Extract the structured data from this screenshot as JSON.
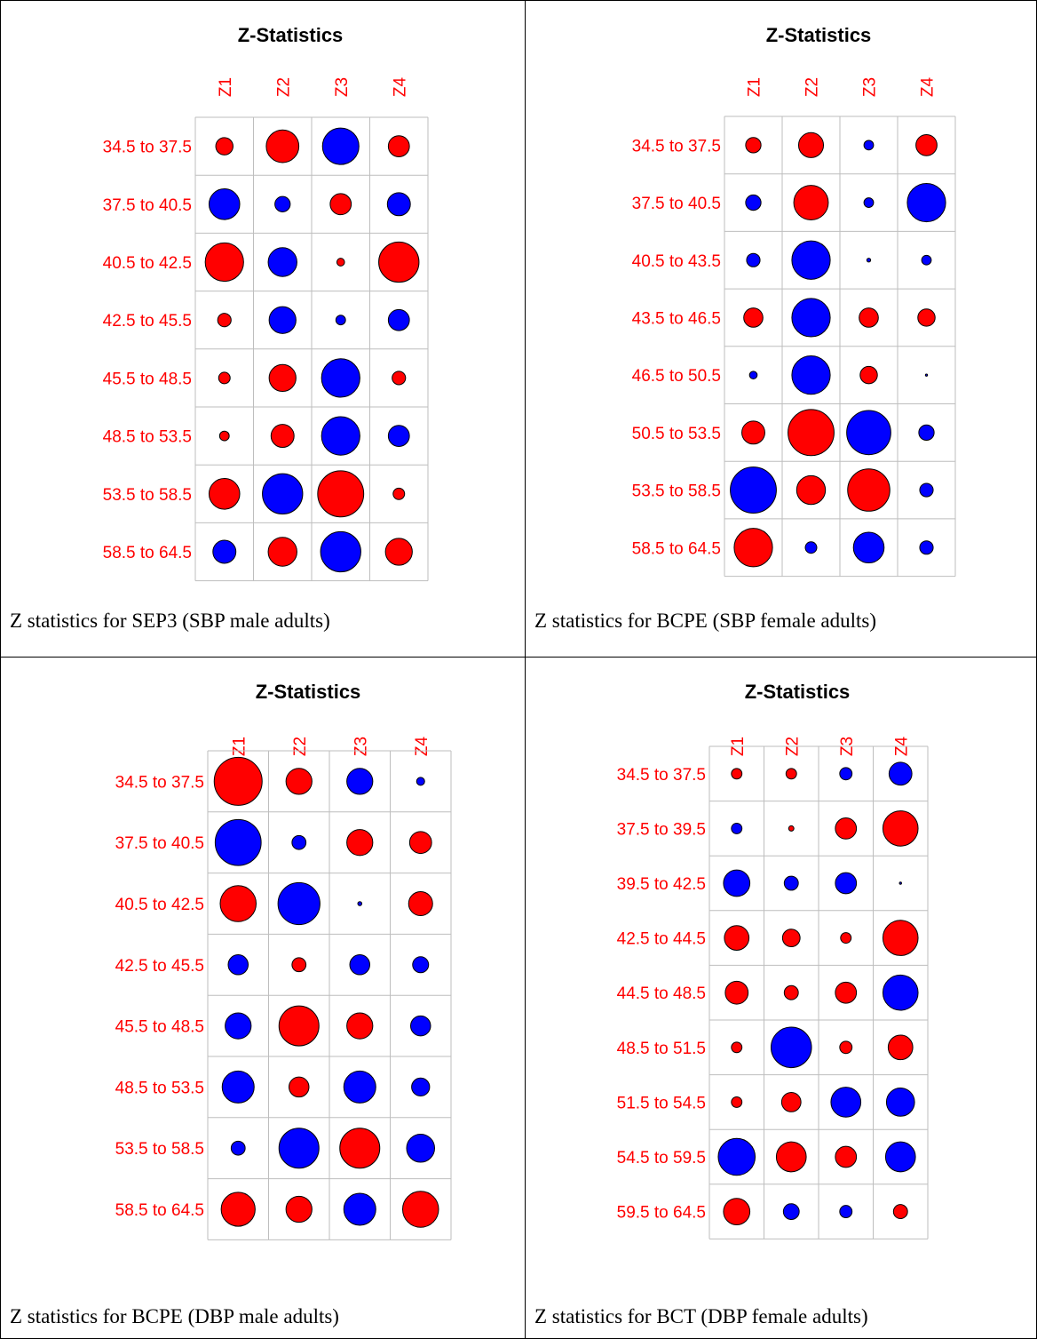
{
  "colors": {
    "positive": "#ff0000",
    "negative": "#0000ff",
    "grid": "#bebebe",
    "label": "#ff0000"
  },
  "chart_data": [
    {
      "type": "heatmap",
      "title": "Z-Statistics",
      "caption": "Z statistics for SEP3 (SBP male adults)",
      "columns": [
        "Z1",
        "Z2",
        "Z3",
        "Z4"
      ],
      "rows": [
        "34.5 to 37.5",
        "37.5 to 40.5",
        "40.5 to 42.5",
        "42.5 to 45.5",
        "45.5 to 48.5",
        "48.5 to 53.5",
        "53.5 to 58.5",
        "58.5 to 64.5"
      ],
      "values": [
        [
          0.45,
          0.85,
          -0.95,
          0.55
        ],
        [
          -0.8,
          -0.4,
          0.55,
          -0.6
        ],
        [
          1.0,
          -0.75,
          0.2,
          1.05
        ],
        [
          0.35,
          -0.7,
          -0.25,
          -0.55
        ],
        [
          0.3,
          0.7,
          -1.0,
          0.35
        ],
        [
          0.25,
          0.6,
          -1.0,
          -0.55
        ],
        [
          0.8,
          -1.05,
          1.2,
          0.3
        ],
        [
          -0.6,
          0.75,
          -1.05,
          0.7
        ]
      ]
    },
    {
      "type": "heatmap",
      "title": "Z-Statistics",
      "caption": "Z statistics for BCPE (SBP female adults)",
      "columns": [
        "Z1",
        "Z2",
        "Z3",
        "Z4"
      ],
      "rows": [
        "34.5 to 37.5",
        "37.5 to 40.5",
        "40.5 to 43.5",
        "43.5 to 46.5",
        "46.5 to 50.5",
        "50.5 to 53.5",
        "53.5 to 58.5",
        "58.5 to 64.5"
      ],
      "values": [
        [
          0.4,
          0.65,
          -0.25,
          0.55
        ],
        [
          -0.4,
          0.9,
          -0.25,
          -1.0
        ],
        [
          -0.35,
          -1.0,
          -0.1,
          -0.25
        ],
        [
          0.5,
          -1.0,
          0.5,
          0.45
        ],
        [
          -0.2,
          -1.0,
          0.45,
          -0.05
        ],
        [
          0.6,
          1.2,
          -1.15,
          -0.4
        ],
        [
          -1.2,
          0.75,
          1.1,
          -0.35
        ],
        [
          1.0,
          -0.3,
          -0.8,
          -0.35
        ]
      ]
    },
    {
      "type": "heatmap",
      "title": "Z-Statistics",
      "caption": "Z statistics for BCPE (DBP male adults)",
      "columns": [
        "Z1",
        "Z2",
        "Z3",
        "Z4"
      ],
      "rows": [
        "34.5 to 37.5",
        "37.5 to 40.5",
        "40.5 to 42.5",
        "42.5 to 45.5",
        "45.5 to 48.5",
        "48.5 to 53.5",
        "53.5 to 58.5",
        "58.5 to 64.5"
      ],
      "values": [
        [
          1.2,
          0.65,
          -0.65,
          -0.2
        ],
        [
          -1.15,
          -0.35,
          0.65,
          0.55
        ],
        [
          0.9,
          -1.05,
          -0.1,
          0.6
        ],
        [
          -0.5,
          0.35,
          -0.5,
          -0.4
        ],
        [
          -0.65,
          1.0,
          0.65,
          -0.5
        ],
        [
          -0.8,
          0.5,
          -0.8,
          -0.45
        ],
        [
          -0.35,
          -1.0,
          1.0,
          -0.7
        ],
        [
          0.85,
          0.65,
          -0.8,
          0.9
        ]
      ]
    },
    {
      "type": "heatmap",
      "title": "Z-Statistics",
      "caption": "Z statistics for BCT (DBP female adults)",
      "columns": [
        "Z1",
        "Z2",
        "Z3",
        "Z4"
      ],
      "rows": [
        "34.5 to 37.5",
        "37.5 to 39.5",
        "39.5 to 42.5",
        "42.5 to 44.5",
        "44.5 to 48.5",
        "48.5 to 51.5",
        "51.5 to 54.5",
        "54.5 to 59.5",
        "59.5 to 64.5"
      ],
      "values": [
        [
          0.3,
          0.3,
          -0.35,
          -0.65
        ],
        [
          -0.3,
          0.15,
          0.6,
          1.0
        ],
        [
          -0.75,
          -0.4,
          -0.6,
          -0.05
        ],
        [
          0.7,
          0.5,
          0.3,
          1.0
        ],
        [
          0.65,
          0.4,
          0.6,
          -1.0
        ],
        [
          0.3,
          -1.15,
          0.35,
          0.7
        ],
        [
          0.3,
          0.55,
          -0.85,
          -0.8
        ],
        [
          -1.05,
          0.85,
          0.6,
          -0.85
        ],
        [
          0.75,
          -0.45,
          -0.35,
          0.4
        ]
      ]
    }
  ]
}
